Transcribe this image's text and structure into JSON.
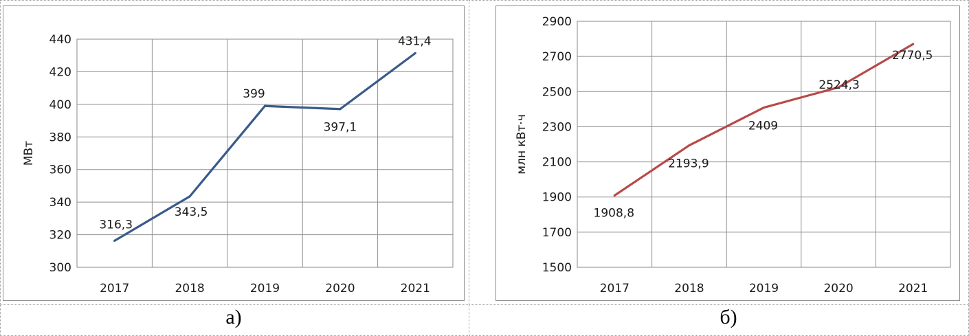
{
  "captions": {
    "left": "а)",
    "right": "б)"
  },
  "colors": {
    "left_line": "#3a5a8a",
    "right_line": "#b84a4a",
    "grid": "#8f8f8f"
  },
  "chart_data": [
    {
      "type": "line",
      "categories": [
        "2017",
        "2018",
        "2019",
        "2020",
        "2021"
      ],
      "values": [
        316.3,
        343.5,
        399,
        397.1,
        431.4
      ],
      "value_labels": [
        "316,3",
        "343,5",
        "399",
        "397,1",
        "431,4"
      ],
      "ylabel": "МВт",
      "ylim": [
        300,
        440
      ],
      "yticks": [
        "300",
        "320",
        "340",
        "360",
        "380",
        "400",
        "420",
        "440"
      ],
      "grid": true,
      "legend": "none"
    },
    {
      "type": "line",
      "categories": [
        "2017",
        "2018",
        "2019",
        "2020",
        "2021"
      ],
      "values": [
        1908.8,
        2193.9,
        2409,
        2524.3,
        2770.5
      ],
      "value_labels": [
        "1908,8",
        "2193,9",
        "2409",
        "2524,3",
        "2770,5"
      ],
      "ylabel": "млн кВт·ч",
      "ylim": [
        1500,
        2900
      ],
      "yticks": [
        "1500",
        "1700",
        "1900",
        "2100",
        "2300",
        "2500",
        "2700",
        "2900"
      ],
      "grid": true,
      "legend": "none"
    }
  ]
}
